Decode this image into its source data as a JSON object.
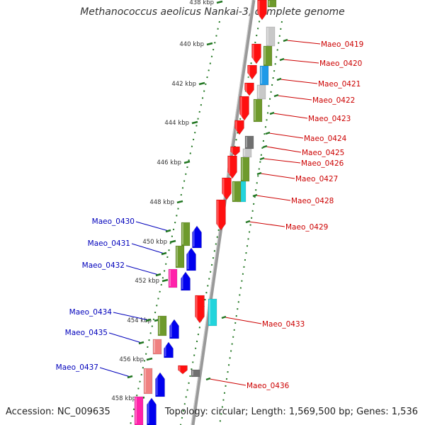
{
  "title": "Methanococcus aeolicus Nankai-3, complete genome",
  "footer": {
    "accession": "Accession: NC_009635",
    "topology": "Topology: circular; Length: 1,569,500 bp; Genes: 1,536"
  },
  "colors": {
    "forward_label": "#cc0000",
    "reverse_label": "#0000bb",
    "ruler": "#227722",
    "backbone": "#999999"
  },
  "ruler_labels": [
    "438 kbp",
    "440 kbp",
    "442 kbp",
    "444 kbp",
    "446 kbp",
    "448 kbp",
    "450 kbp",
    "452 kbp",
    "454 kbp",
    "456 kbp",
    "458 kbp"
  ],
  "forward_labels": [
    "Maeo_0419",
    "Maeo_0420",
    "Maeo_0421",
    "Maeo_0422",
    "Maeo_0423",
    "Maeo_0424",
    "Maeo_0425",
    "Maeo_0426",
    "Maeo_0427",
    "Maeo_0428",
    "Maeo_0429",
    "Maeo_0433",
    "Maeo_0436"
  ],
  "reverse_labels": [
    "Maeo_0430",
    "Maeo_0431",
    "Maeo_0432",
    "Maeo_0434",
    "Maeo_0435",
    "Maeo_0437"
  ]
}
